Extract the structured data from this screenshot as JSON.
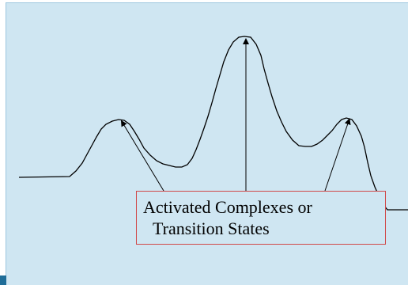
{
  "diagram": {
    "callout": {
      "line1": "Activated Complexes or",
      "line2": "Transition States"
    },
    "colors": {
      "background": "#cfe6f2",
      "curve": "#000000",
      "callout_border": "#d04848",
      "accent": "#1f6d98"
    }
  }
}
